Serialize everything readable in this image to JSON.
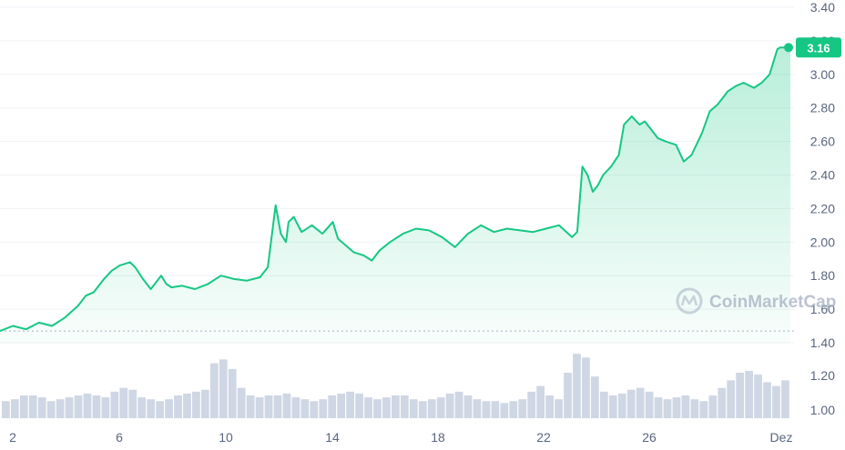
{
  "chart_data": {
    "type": "area",
    "x_labels": [
      "2",
      "6",
      "10",
      "14",
      "18",
      "22",
      "26",
      "Dez"
    ],
    "y_ticks": [
      "3.40",
      "3.20",
      "3.00",
      "2.80",
      "2.60",
      "2.40",
      "2.20",
      "2.00",
      "1.80",
      "1.60",
      "1.40"
    ],
    "volume_ticks": [
      "1.20",
      "1.00"
    ],
    "ylim": [
      1.4,
      3.4
    ],
    "reference_line": 1.47,
    "current_price_label": "3.16",
    "current_price": 3.16,
    "watermark": "CoinMarketCap",
    "colors": {
      "line": "#16c784",
      "badge": "#16c784",
      "volume": "#cfd6e4",
      "grid": "#eff2f5",
      "reference": "#a6b0c3"
    },
    "series": [
      {
        "x": [
          0,
          0.5,
          1,
          1.5,
          2,
          2.5,
          3,
          3.3,
          3.6,
          4,
          4.3,
          4.6,
          5,
          5.2,
          5.5,
          5.8,
          6,
          6.2,
          6.4,
          6.6,
          7,
          7.5,
          8,
          8.5,
          9,
          9.5,
          10,
          10.3,
          10.6,
          10.8,
          11,
          11.1,
          11.3,
          11.6,
          12,
          12.4,
          12.8,
          13,
          13.3,
          13.6,
          14,
          14.3,
          14.6,
          15,
          15.5,
          16,
          16.5,
          17,
          17.5,
          18,
          18.5,
          19,
          19.5,
          20,
          20.5,
          21,
          21.5,
          22,
          22.2,
          22.4,
          22.6,
          22.8,
          23,
          23.2,
          23.5,
          23.8,
          24,
          24.3,
          24.6,
          24.8,
          25,
          25.3,
          25.6,
          26,
          26.3,
          26.6,
          27,
          27.3,
          27.6,
          28,
          28.3,
          28.6,
          29,
          29.3,
          29.6,
          29.9,
          30,
          30.2,
          30.4
        ],
        "values": [
          1.47,
          1.5,
          1.48,
          1.52,
          1.5,
          1.55,
          1.62,
          1.68,
          1.7,
          1.78,
          1.83,
          1.86,
          1.88,
          1.85,
          1.78,
          1.72,
          1.76,
          1.8,
          1.75,
          1.73,
          1.74,
          1.72,
          1.75,
          1.8,
          1.78,
          1.77,
          1.79,
          1.85,
          2.22,
          2.05,
          2.0,
          2.12,
          2.15,
          2.06,
          2.1,
          2.05,
          2.12,
          2.02,
          1.98,
          1.94,
          1.92,
          1.89,
          1.95,
          2.0,
          2.05,
          2.08,
          2.07,
          2.03,
          1.97,
          2.05,
          2.1,
          2.06,
          2.08,
          2.07,
          2.06,
          2.08,
          2.1,
          2.03,
          2.06,
          2.45,
          2.4,
          2.3,
          2.34,
          2.4,
          2.45,
          2.52,
          2.7,
          2.75,
          2.7,
          2.72,
          2.68,
          2.62,
          2.6,
          2.58,
          2.48,
          2.52,
          2.65,
          2.78,
          2.82,
          2.9,
          2.93,
          2.95,
          2.92,
          2.95,
          3.0,
          3.15,
          3.16,
          3.16,
          3.16
        ]
      }
    ],
    "volume": [
      1.05,
      1.06,
      1.08,
      1.08,
      1.07,
      1.05,
      1.06,
      1.07,
      1.08,
      1.09,
      1.08,
      1.07,
      1.1,
      1.12,
      1.11,
      1.07,
      1.06,
      1.05,
      1.06,
      1.08,
      1.09,
      1.1,
      1.11,
      1.25,
      1.27,
      1.22,
      1.12,
      1.08,
      1.07,
      1.08,
      1.08,
      1.09,
      1.07,
      1.06,
      1.05,
      1.06,
      1.08,
      1.09,
      1.1,
      1.09,
      1.07,
      1.06,
      1.07,
      1.08,
      1.08,
      1.06,
      1.05,
      1.06,
      1.07,
      1.09,
      1.1,
      1.08,
      1.06,
      1.05,
      1.05,
      1.04,
      1.05,
      1.06,
      1.1,
      1.13,
      1.08,
      1.06,
      1.2,
      1.3,
      1.28,
      1.18,
      1.1,
      1.08,
      1.09,
      1.11,
      1.12,
      1.1,
      1.07,
      1.06,
      1.07,
      1.08,
      1.06,
      1.05,
      1.08,
      1.12,
      1.16,
      1.2,
      1.21,
      1.19,
      1.15,
      1.13,
      1.16
    ]
  }
}
